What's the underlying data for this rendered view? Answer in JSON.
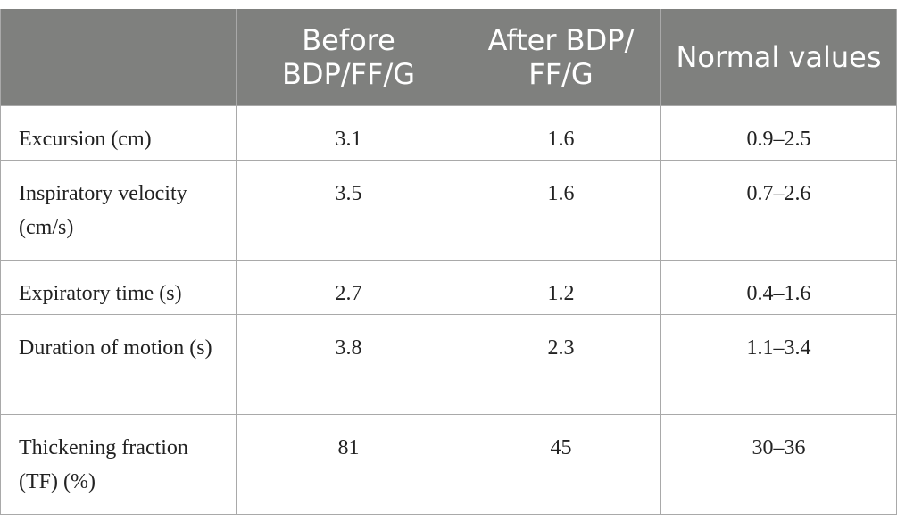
{
  "table": {
    "headers": [
      "",
      "Before BDP/FF/G",
      "After BDP/ FF/G",
      "Normal values"
    ],
    "rows": [
      {
        "label": "Excursion (cm)",
        "before": "3.1",
        "after": "1.6",
        "normal": "0.9–2.5"
      },
      {
        "label": "Inspiratory velocity (cm/s)",
        "before": "3.5",
        "after": "1.6",
        "normal": "0.7–2.6"
      },
      {
        "label": "Expiratory time (s)",
        "before": "2.7",
        "after": "1.2",
        "normal": "0.4–1.6"
      },
      {
        "label": "Duration of motion (s)",
        "before": "3.8",
        "after": "2.3",
        "normal": "1.1–3.4"
      },
      {
        "label": "Thickening fraction (TF) (%)",
        "before": "81",
        "after": "45",
        "normal": "30–36"
      }
    ]
  }
}
